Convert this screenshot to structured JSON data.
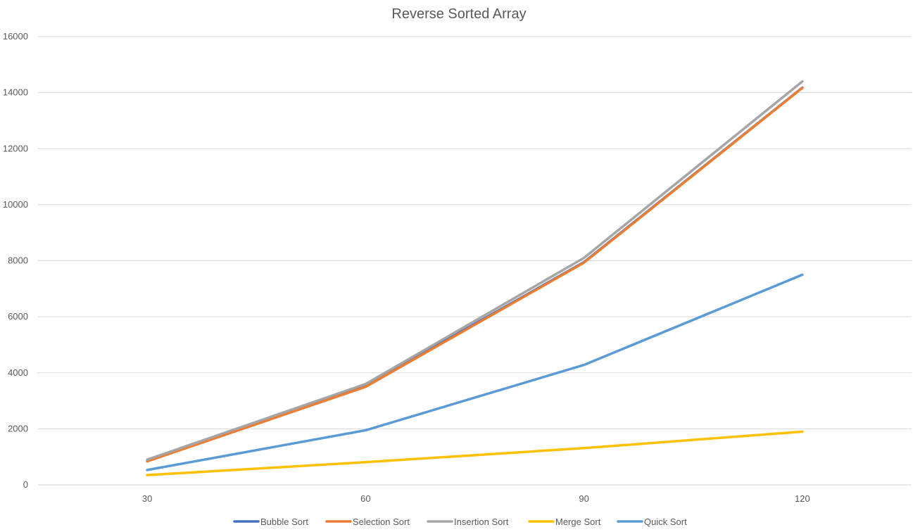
{
  "chart_data": {
    "type": "line",
    "title": "Reverse Sorted Array",
    "xlabel": "",
    "ylabel": "",
    "categories": [
      "30",
      "60",
      "90",
      "120"
    ],
    "ylim": [
      0,
      16000
    ],
    "yticks": [
      "0",
      "2000",
      "4000",
      "6000",
      "8000",
      "10000",
      "12000",
      "14000",
      "16000"
    ],
    "grid": true,
    "legend_position": "bottom",
    "series": [
      {
        "name": "Bubble Sort",
        "color": "#4472C4",
        "values": [
          870,
          3540,
          7950,
          14180
        ]
      },
      {
        "name": "Selection Sort",
        "color": "#ED7D31",
        "values": [
          840,
          3500,
          7930,
          14170
        ]
      },
      {
        "name": "Insertion Sort",
        "color": "#A5A5A5",
        "values": [
          900,
          3600,
          8100,
          14400
        ]
      },
      {
        "name": "Merge Sort",
        "color": "#FFC000",
        "values": [
          350,
          810,
          1310,
          1900
        ]
      },
      {
        "name": "Quick Sort",
        "color": "#5B9BD5",
        "values": [
          530,
          1950,
          4280,
          7500
        ]
      }
    ]
  }
}
